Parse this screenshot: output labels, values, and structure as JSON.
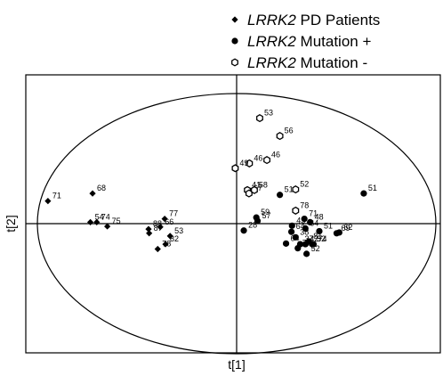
{
  "chart_data": {
    "type": "scatter",
    "xlabel": "t[1]",
    "ylabel": "t[2]",
    "xlim": [
      -1,
      1
    ],
    "ylim": [
      -1,
      1
    ],
    "grid": false,
    "legend_position": "top-right",
    "reference_ellipse": true,
    "series": [
      {
        "name_italic": "LRRK2",
        "name_rest": " PD Patients",
        "marker": "diamond",
        "color": "#000000",
        "points": [
          {
            "x": -0.947,
            "y": 0.174,
            "label": "71"
          },
          {
            "x": -0.723,
            "y": 0.232,
            "label": "68"
          },
          {
            "x": -0.702,
            "y": 0.011,
            "label": "74"
          },
          {
            "x": -0.734,
            "y": 0.011,
            "label": "54"
          },
          {
            "x": -0.649,
            "y": -0.021,
            "label": "75"
          },
          {
            "x": -0.439,
            "y": -0.074,
            "label": "87"
          },
          {
            "x": -0.442,
            "y": -0.042,
            "label": "88"
          },
          {
            "x": -0.383,
            "y": -0.026,
            "label": "66"
          },
          {
            "x": -0.361,
            "y": 0.037,
            "label": "77"
          },
          {
            "x": -0.334,
            "y": -0.095,
            "label": "53"
          },
          {
            "x": -0.357,
            "y": -0.158,
            "label": "82"
          },
          {
            "x": -0.396,
            "y": -0.195,
            "label": "78"
          }
        ]
      },
      {
        "name_italic": "LRRK2",
        "name_rest": " Mutation +",
        "marker": "circle",
        "color": "#000000",
        "points": [
          {
            "x": 0.217,
            "y": 0.221,
            "label": "51"
          },
          {
            "x": 0.638,
            "y": 0.232,
            "label": "51"
          },
          {
            "x": 0.099,
            "y": 0.047,
            "label": "59"
          },
          {
            "x": 0.105,
            "y": 0.021,
            "label": "57"
          },
          {
            "x": 0.34,
            "y": 0.037,
            "label": "71"
          },
          {
            "x": 0.369,
            "y": 0.011,
            "label": "48"
          },
          {
            "x": 0.036,
            "y": -0.053,
            "label": "28"
          },
          {
            "x": 0.278,
            "y": -0.016,
            "label": "43"
          },
          {
            "x": 0.275,
            "y": -0.063,
            "label": "64"
          },
          {
            "x": 0.345,
            "y": -0.037,
            "label": "64"
          },
          {
            "x": 0.296,
            "y": -0.105,
            "label": "38"
          },
          {
            "x": 0.415,
            "y": -0.058,
            "label": "51"
          },
          {
            "x": 0.502,
            "y": -0.074,
            "label": "69"
          },
          {
            "x": 0.515,
            "y": -0.068,
            "label": "62"
          },
          {
            "x": 0.363,
            "y": -0.137,
            "label": "81"
          },
          {
            "x": 0.248,
            "y": -0.153,
            "label": "64"
          },
          {
            "x": 0.386,
            "y": -0.158,
            "label": "74"
          },
          {
            "x": 0.319,
            "y": -0.158,
            "label": "37"
          },
          {
            "x": 0.345,
            "y": -0.158,
            "label": "42"
          },
          {
            "x": 0.38,
            "y": -0.158,
            "label": "52"
          },
          {
            "x": 0.307,
            "y": -0.189,
            "label": "76"
          },
          {
            "x": 0.351,
            "y": -0.232,
            "label": "52"
          }
        ]
      },
      {
        "name_italic": "LRRK2",
        "name_rest": " Mutation -",
        "marker": "hexagon",
        "color": "#000000",
        "points": [
          {
            "x": 0.116,
            "y": 0.811,
            "label": "53"
          },
          {
            "x": 0.217,
            "y": 0.674,
            "label": "56"
          },
          {
            "x": 0.152,
            "y": 0.489,
            "label": "46"
          },
          {
            "x": 0.064,
            "y": 0.463,
            "label": "46"
          },
          {
            "x": -0.007,
            "y": 0.426,
            "label": "49"
          },
          {
            "x": 0.054,
            "y": 0.258,
            "label": "41"
          },
          {
            "x": 0.062,
            "y": 0.232,
            "label": "67"
          },
          {
            "x": 0.089,
            "y": 0.258,
            "label": "58"
          },
          {
            "x": 0.296,
            "y": 0.263,
            "label": "52"
          },
          {
            "x": 0.296,
            "y": 0.1,
            "label": "78"
          }
        ]
      }
    ]
  }
}
